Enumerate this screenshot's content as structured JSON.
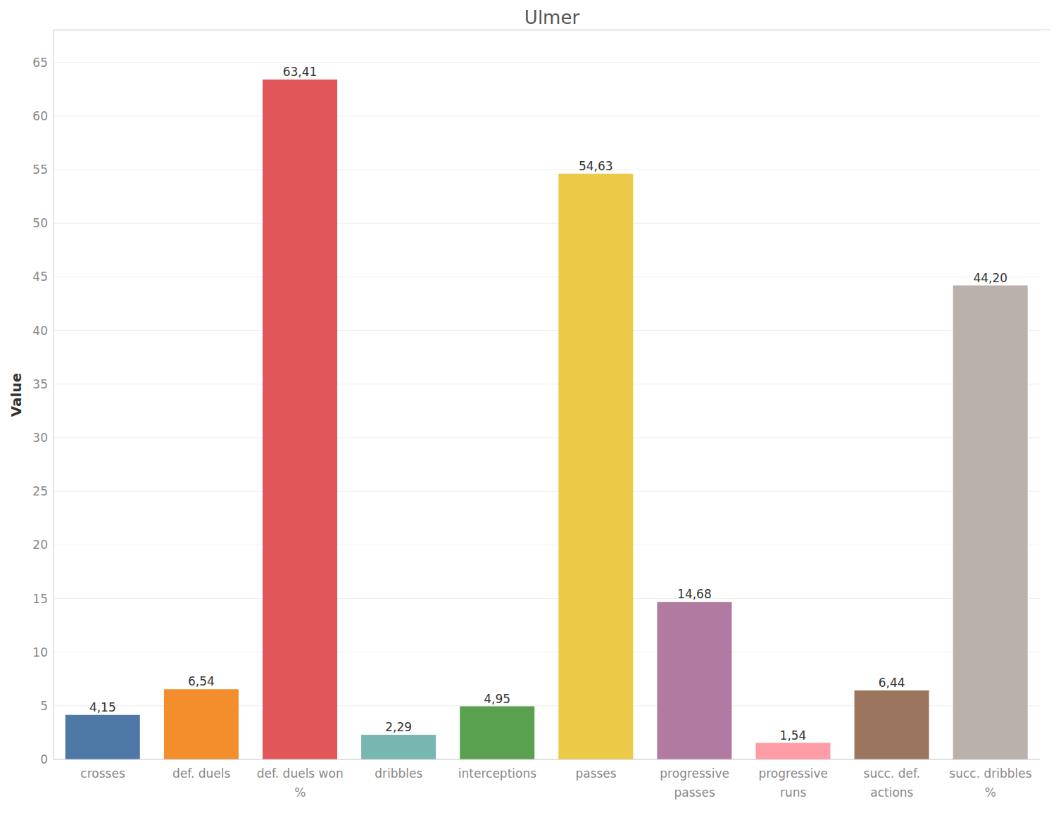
{
  "chart_data": {
    "type": "bar",
    "title": "Ulmer",
    "ylabel": "Value",
    "categories": [
      "crosses",
      "def. duels",
      "def. duels won %",
      "dribbles",
      "interceptions",
      "passes",
      "progressive passes",
      "progressive runs",
      "succ. def. actions",
      "succ. dribbles %"
    ],
    "values": [
      4.15,
      6.54,
      63.41,
      2.29,
      4.95,
      54.63,
      14.68,
      1.54,
      6.44,
      44.2
    ],
    "value_labels": [
      "4,15",
      "6,54",
      "63,41",
      "2,29",
      "4,95",
      "54,63",
      "14,68",
      "1,54",
      "6,44",
      "44,20"
    ],
    "colors": [
      "#4e79a7",
      "#f28e2b",
      "#e15759",
      "#76b7b2",
      "#59a14f",
      "#edc948",
      "#b07aa1",
      "#ff9da7",
      "#9c755f",
      "#bab0ac"
    ],
    "ylim": [
      0,
      68
    ],
    "yticks": [
      0,
      5,
      10,
      15,
      20,
      25,
      30,
      35,
      40,
      45,
      50,
      55,
      60,
      65
    ],
    "grid": true,
    "data_labels": true
  }
}
